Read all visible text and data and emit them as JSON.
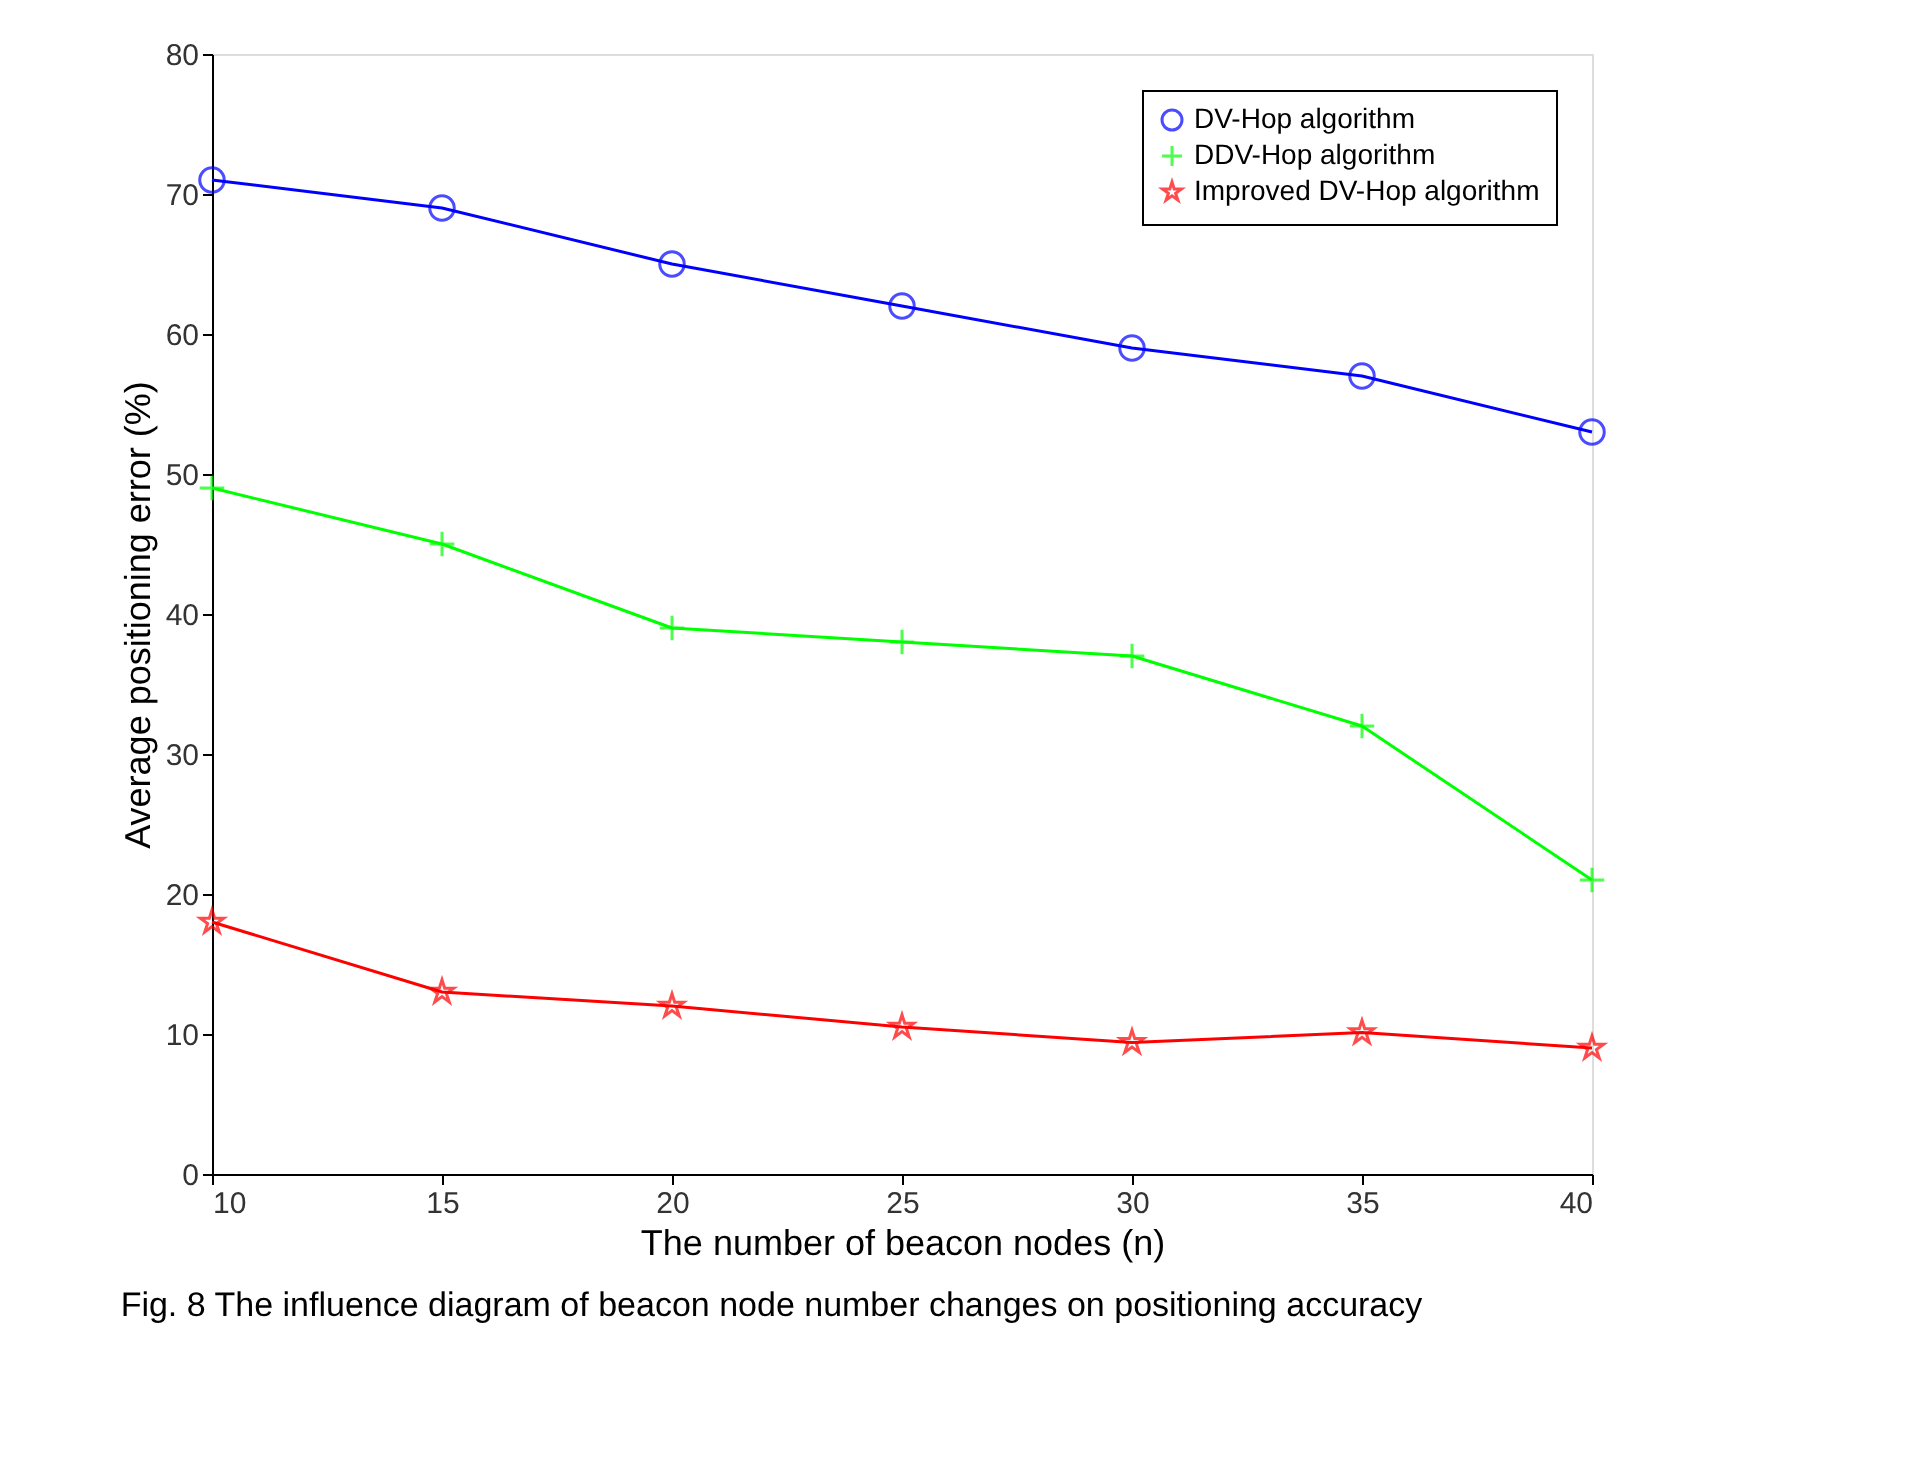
{
  "chart_data": {
    "type": "line",
    "xlabel": "The number of beacon nodes (n)",
    "ylabel": "Average positioning error (%)",
    "x": [
      10,
      15,
      20,
      25,
      30,
      35,
      40
    ],
    "series": [
      {
        "name": "DV-Hop algorithm",
        "color": "#0000ff",
        "marker": "circle",
        "values": [
          71,
          69,
          65,
          62,
          59,
          57,
          53
        ]
      },
      {
        "name": "DDV-Hop algorithm",
        "color": "#00ff00",
        "marker": "cross",
        "values": [
          49,
          45,
          39,
          38,
          37,
          32,
          21
        ]
      },
      {
        "name": "Improved DV-Hop algorithm",
        "color": "#ff0000",
        "marker": "star",
        "values": [
          18,
          13,
          12,
          10.5,
          9.4,
          10.1,
          9
        ]
      }
    ],
    "xlim": [
      10,
      40
    ],
    "xticks": [
      10,
      15,
      20,
      25,
      30,
      35,
      40
    ],
    "ylim": [
      0,
      80
    ],
    "yticks": [
      0,
      10,
      20,
      30,
      40,
      50,
      60,
      70,
      80
    ],
    "grid": false,
    "legend": "top right",
    "line_style": "solid",
    "annotations": [
      "Fig. 8 The influence diagram of beacon node number changes on positioning accuracy"
    ]
  }
}
